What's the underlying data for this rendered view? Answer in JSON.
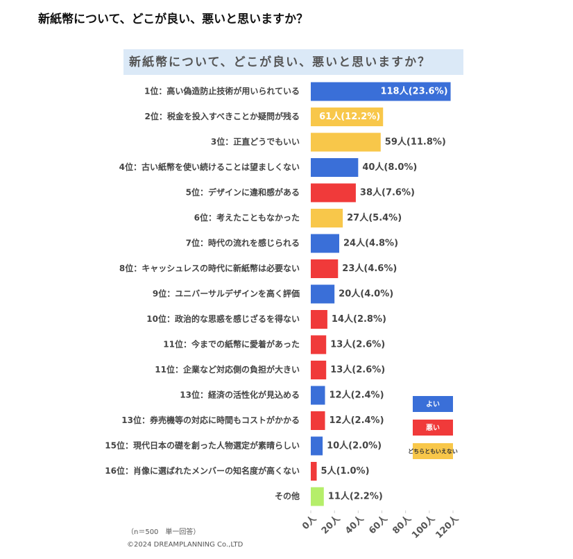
{
  "page_title": "新紙幣について、どこが良い、悪いと思いますか？",
  "chart_data": {
    "type": "bar",
    "orientation": "horizontal",
    "title": "新紙幣について、どこが良い、悪いと思いますか？",
    "categories": [
      "1位：高い偽造防止技術が用いられている",
      "2位：税金を投入すべきことか疑問が残る",
      "3位：正直どうでもいい",
      "4位：古い紙幣を使い続けることは望ましくない",
      "5位：デザインに違和感がある",
      "6位：考えたこともなかった",
      "7位：時代の流れを感じられる",
      "8位：キャッシュレスの時代に新紙幣は必要ない",
      "9位：ユニバーサルデザインを高く評価",
      "10位：政治的な思惑を感じざるを得ない",
      "11位：今までの紙幣に愛着があった",
      "11位：企業など対応側の負担が大きい",
      "13位：経済の活性化が見込める",
      "13位：券売機等の対応に時間もコストがかかる",
      "15位：現代日本の礎を創った人物選定が素晴らしい",
      "16位：肖像に選ばれたメンバーの知名度が高くない",
      "その他"
    ],
    "values": [
      118,
      61,
      59,
      40,
      38,
      27,
      24,
      23,
      20,
      14,
      13,
      13,
      12,
      12,
      10,
      5,
      11
    ],
    "value_labels": [
      "118人(23.6%)",
      "61人(12.2%)",
      "59人(11.8%)",
      "40人(8.0%)",
      "38人(7.6%)",
      "27人(5.4%)",
      "24人(4.8%)",
      "23人(4.6%)",
      "20人(4.0%)",
      "14人(2.8%)",
      "13人(2.6%)",
      "13人(2.6%)",
      "12人(2.4%)",
      "12人(2.4%)",
      "10人(2.0%)",
      "5人(1.0%)",
      "11人(2.2%)"
    ],
    "colors": [
      "#3a6fd8",
      "#f8c74a",
      "#f8c74a",
      "#3a6fd8",
      "#f03a3a",
      "#f8c74a",
      "#3a6fd8",
      "#f03a3a",
      "#3a6fd8",
      "#f03a3a",
      "#f03a3a",
      "#f03a3a",
      "#3a6fd8",
      "#f03a3a",
      "#3a6fd8",
      "#f03a3a",
      "#b5ee6a"
    ],
    "xlim": [
      0,
      120
    ],
    "xticks": [
      {
        "value": 0,
        "label": "0人"
      },
      {
        "value": 20,
        "label": "20人"
      },
      {
        "value": 40,
        "label": "40人"
      },
      {
        "value": 60,
        "label": "60人"
      },
      {
        "value": 80,
        "label": "80人"
      },
      {
        "value": 100,
        "label": "100人"
      },
      {
        "value": 120,
        "label": "120人"
      }
    ],
    "legend": [
      {
        "label": "よい",
        "color": "#3a6fd8"
      },
      {
        "label": "悪い",
        "color": "#f03a3a"
      },
      {
        "label": "どちらともいえない",
        "color": "#f8c74a"
      }
    ],
    "notes": [
      "（n＝500　単一回答）",
      "©2024 DREAMPLANNING Co.,LTD"
    ]
  }
}
